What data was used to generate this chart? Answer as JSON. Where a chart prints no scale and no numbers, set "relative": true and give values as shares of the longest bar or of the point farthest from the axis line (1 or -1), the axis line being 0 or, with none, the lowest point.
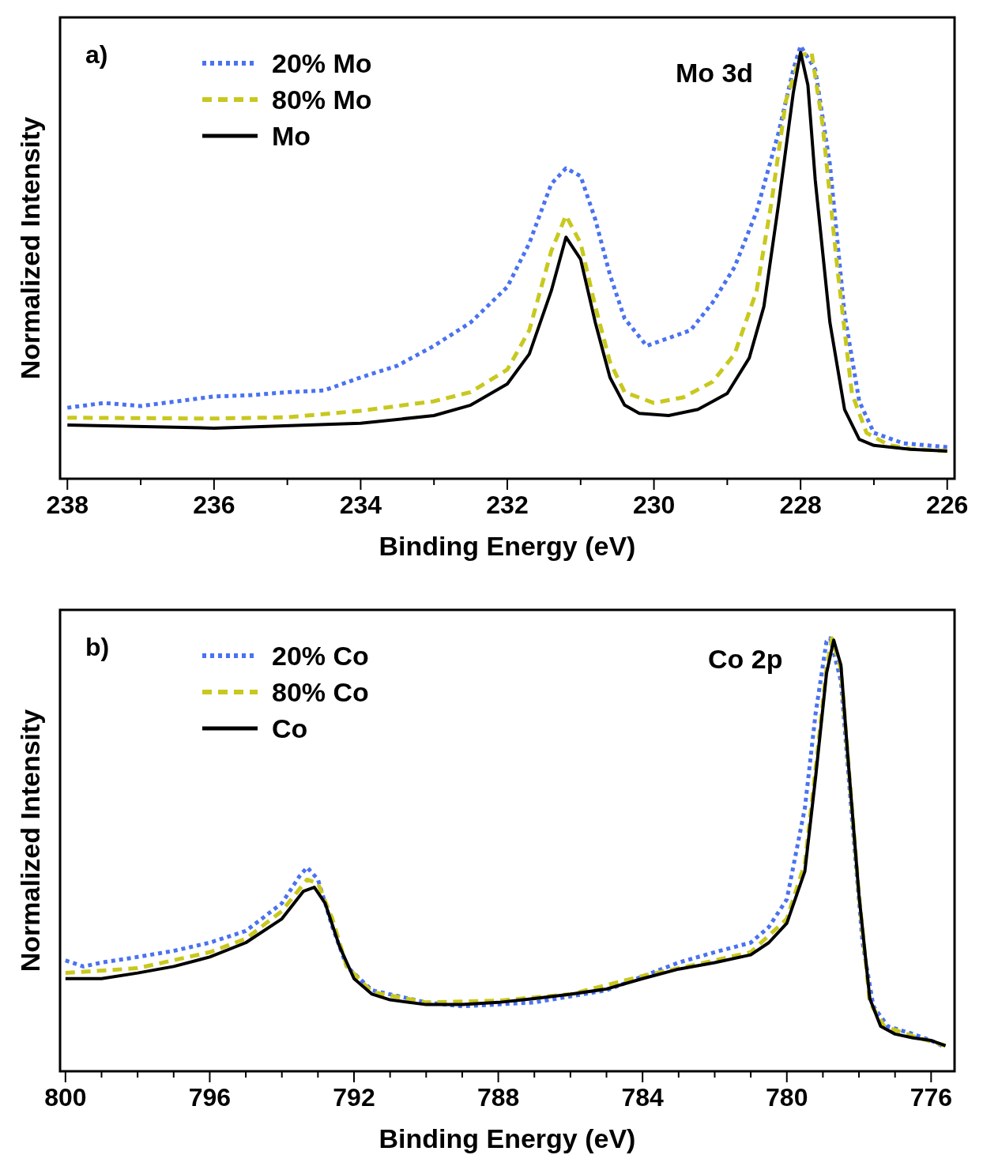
{
  "chart_data": [
    {
      "type": "line",
      "relative": true,
      "xlabel": "Binding Energy (eV)",
      "ylabel": "Normalized Intensity",
      "xlim": [
        238.1,
        225.9
      ],
      "xticks": [
        238,
        {
          "value": 237,
          "label": null
        },
        236,
        {
          "value": 235,
          "label": null
        },
        234,
        {
          "value": 233,
          "label": null
        },
        232,
        {
          "value": 231,
          "label": null
        },
        230,
        {
          "value": 229,
          "label": null
        },
        228,
        {
          "value": 227,
          "label": null
        },
        226
      ],
      "tick_labels": "x",
      "legend": "top left",
      "annotations": [
        "a)",
        {
          "text": "Mo 3d",
          "x": 228,
          "y": 0.985
        }
      ],
      "series": [
        {
          "name": "20% Mo",
          "color": "#4a72f0",
          "line_style": "dotted",
          "x": [
            238,
            237.5,
            237,
            236.5,
            236,
            235.5,
            235,
            234.5,
            234,
            233.5,
            233,
            232.5,
            232,
            231.7,
            231.4,
            231.2,
            231.0,
            230.8,
            230.6,
            230.4,
            230.1,
            229.8,
            229.5,
            229.2,
            228.9,
            228.6,
            228.3,
            228.1,
            228.0,
            227.8,
            227.6,
            227.4,
            227.2,
            227.0,
            226.6,
            226.0
          ],
          "values": [
            0.164,
            0.175,
            0.168,
            0.179,
            0.19,
            0.193,
            0.2,
            0.204,
            0.234,
            0.261,
            0.307,
            0.361,
            0.443,
            0.544,
            0.681,
            0.717,
            0.699,
            0.599,
            0.471,
            0.37,
            0.307,
            0.325,
            0.343,
            0.407,
            0.489,
            0.617,
            0.8,
            0.945,
            1,
            0.945,
            0.726,
            0.38,
            0.179,
            0.106,
            0.082,
            0.073
          ]
        },
        {
          "name": "80% Mo",
          "color": "#c8c81e",
          "line_style": "dashed",
          "x": [
            238,
            236,
            235,
            234,
            233,
            232.5,
            232,
            231.7,
            231.4,
            231.2,
            231.0,
            230.8,
            230.6,
            230.4,
            230.0,
            229.6,
            229.2,
            228.9,
            228.6,
            228.4,
            228.2,
            228.0,
            227.85,
            227.7,
            227.5,
            227.3,
            227.1,
            226.8,
            226.5,
            226.0
          ],
          "values": [
            0.141,
            0.139,
            0.142,
            0.157,
            0.179,
            0.2,
            0.252,
            0.343,
            0.526,
            0.608,
            0.544,
            0.398,
            0.27,
            0.2,
            0.175,
            0.188,
            0.224,
            0.288,
            0.434,
            0.635,
            0.873,
            0.978,
            0.985,
            0.818,
            0.489,
            0.197,
            0.106,
            0.078,
            0.069,
            0.064
          ]
        },
        {
          "name": "Mo",
          "color": "#000000",
          "line_style": "solid",
          "x": [
            238,
            236,
            234,
            233,
            232.5,
            232,
            231.7,
            231.4,
            231.2,
            231.0,
            230.8,
            230.6,
            230.4,
            230.2,
            229.8,
            229.4,
            229.0,
            228.7,
            228.5,
            228.3,
            228.1,
            228.0,
            227.9,
            227.8,
            227.6,
            227.4,
            227.2,
            227.0,
            226.5,
            226.0
          ],
          "values": [
            0.124,
            0.117,
            0.128,
            0.146,
            0.17,
            0.219,
            0.288,
            0.434,
            0.558,
            0.507,
            0.361,
            0.234,
            0.17,
            0.151,
            0.146,
            0.16,
            0.197,
            0.279,
            0.398,
            0.635,
            0.891,
            0.985,
            0.909,
            0.69,
            0.361,
            0.16,
            0.091,
            0.077,
            0.068,
            0.064
          ]
        }
      ]
    },
    {
      "type": "line",
      "relative": true,
      "xlabel": "Binding Energy (eV)",
      "ylabel": "Normalized Intensity",
      "xlim": [
        800.15,
        775.35
      ],
      "xticks": [
        800,
        {
          "value": 799,
          "label": null
        },
        {
          "value": 798,
          "label": null
        },
        {
          "value": 797,
          "label": null
        },
        796,
        {
          "value": 795,
          "label": null
        },
        {
          "value": 794,
          "label": null
        },
        {
          "value": 793,
          "label": null
        },
        792,
        {
          "value": 791,
          "label": null
        },
        {
          "value": 790,
          "label": null
        },
        {
          "value": 789,
          "label": null
        },
        788,
        {
          "value": 787,
          "label": null
        },
        {
          "value": 786,
          "label": null
        },
        {
          "value": 785,
          "label": null
        },
        784,
        {
          "value": 783,
          "label": null
        },
        {
          "value": 782,
          "label": null
        },
        {
          "value": 781,
          "label": null
        },
        780,
        {
          "value": 779,
          "label": null
        },
        {
          "value": 778,
          "label": null
        },
        {
          "value": 777,
          "label": null
        },
        776
      ],
      "tick_labels": "x",
      "legend": "top left",
      "annotations": [
        "b)",
        {
          "text": "Co 2p",
          "x": 778.8,
          "y": 1
        }
      ],
      "series": [
        {
          "name": "20% Co",
          "color": "#4a72f0",
          "line_style": "dotted",
          "x": [
            800,
            799.5,
            799,
            798,
            797,
            796,
            795,
            794,
            793.5,
            793.3,
            793,
            792.6,
            792.2,
            791.5,
            790,
            789,
            787,
            785,
            783,
            782,
            781,
            780.5,
            780,
            779.5,
            779.2,
            778.9,
            778.8,
            778.5,
            778.2,
            777.9,
            777.6,
            777.2,
            776.5,
            776,
            775.7
          ],
          "values": [
            0.256,
            0.242,
            0.251,
            0.264,
            0.278,
            0.297,
            0.324,
            0.388,
            0.452,
            0.471,
            0.443,
            0.333,
            0.242,
            0.187,
            0.159,
            0.15,
            0.159,
            0.187,
            0.251,
            0.275,
            0.297,
            0.333,
            0.397,
            0.608,
            0.828,
            0.993,
            1,
            0.901,
            0.59,
            0.297,
            0.15,
            0.104,
            0.086,
            0.071,
            0.059
          ]
        },
        {
          "name": "80% Co",
          "color": "#c8c81e",
          "line_style": "dashed",
          "x": [
            800,
            798,
            796,
            795,
            794,
            793.3,
            793,
            792.6,
            792.2,
            791.5,
            790,
            788,
            786,
            784,
            782,
            781,
            780,
            779.5,
            779.2,
            778.9,
            778.75,
            778.5,
            778.3,
            778,
            777.7,
            777.3,
            776.5,
            775.6
          ],
          "values": [
            0.227,
            0.238,
            0.275,
            0.306,
            0.37,
            0.443,
            0.434,
            0.352,
            0.242,
            0.183,
            0.159,
            0.163,
            0.178,
            0.22,
            0.256,
            0.275,
            0.352,
            0.48,
            0.7,
            0.929,
            1,
            0.929,
            0.718,
            0.407,
            0.159,
            0.104,
            0.081,
            0.059
          ]
        },
        {
          "name": "Co",
          "color": "#000000",
          "line_style": "solid",
          "x": [
            800,
            799,
            798,
            797,
            796,
            795,
            794,
            793.4,
            793.1,
            792.8,
            792.4,
            792,
            791.5,
            791,
            790,
            789,
            788,
            787,
            786,
            785,
            784,
            783,
            782,
            781,
            780.5,
            780,
            779.5,
            779.2,
            778.9,
            778.7,
            778.5,
            778.3,
            778,
            777.7,
            777.4,
            777,
            776.5,
            776,
            775.6
          ],
          "values": [
            0.214,
            0.214,
            0.227,
            0.242,
            0.264,
            0.297,
            0.352,
            0.416,
            0.425,
            0.388,
            0.288,
            0.214,
            0.178,
            0.165,
            0.154,
            0.154,
            0.159,
            0.168,
            0.178,
            0.19,
            0.214,
            0.236,
            0.251,
            0.269,
            0.297,
            0.342,
            0.462,
            0.681,
            0.919,
            0.996,
            0.938,
            0.718,
            0.407,
            0.168,
            0.104,
            0.086,
            0.077,
            0.071,
            0.059
          ]
        }
      ]
    }
  ]
}
